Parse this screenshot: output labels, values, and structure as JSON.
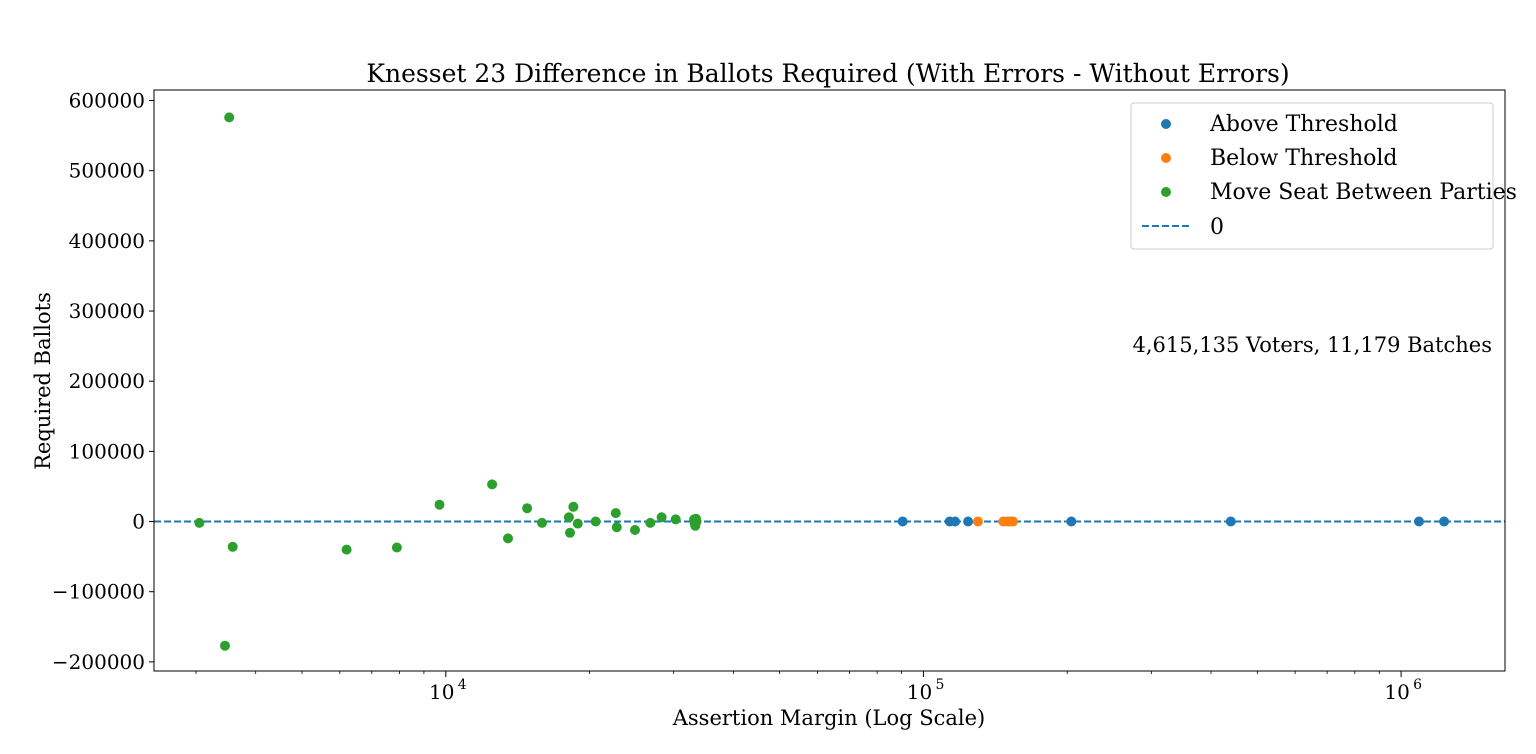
{
  "chart_data": {
    "type": "scatter",
    "title": "Knesset 23 Difference in Ballots Required (With Errors - Without Errors)",
    "xlabel": "Assertion Margin (Log Scale)",
    "ylabel": "Required Ballots",
    "x_scale": "log",
    "xlim": [
      2450,
      1650000
    ],
    "ylim": [
      -213000,
      615000
    ],
    "x_ticks": [
      {
        "value": 10000,
        "base": "10",
        "exp": "4"
      },
      {
        "value": 100000,
        "base": "10",
        "exp": "5"
      },
      {
        "value": 1000000,
        "base": "10",
        "exp": "6"
      }
    ],
    "y_ticks": [
      {
        "value": -200000,
        "label": "−200000"
      },
      {
        "value": -100000,
        "label": "−100000"
      },
      {
        "value": 0,
        "label": "0"
      },
      {
        "value": 100000,
        "label": "100000"
      },
      {
        "value": 200000,
        "label": "200000"
      },
      {
        "value": 300000,
        "label": "300000"
      },
      {
        "value": 400000,
        "label": "400000"
      },
      {
        "value": 500000,
        "label": "500000"
      },
      {
        "value": 600000,
        "label": "600000"
      }
    ],
    "grid": false,
    "legend_position": "top-right",
    "annotation": "4,615,135 Voters, 11,179 Batches",
    "reference_line": {
      "name": "0",
      "y": 0,
      "color": "#1f77b4",
      "style": "dashed"
    },
    "series": [
      {
        "name": "Above Threshold",
        "color": "#1f77b4",
        "points": [
          [
            90500,
            0
          ],
          [
            113500,
            0
          ],
          [
            116500,
            0
          ],
          [
            124000,
            0
          ],
          [
            204000,
            0
          ],
          [
            440000,
            0
          ],
          [
            1090000,
            0
          ],
          [
            1230000,
            0
          ]
        ]
      },
      {
        "name": "Below Threshold",
        "color": "#ff7f0e",
        "points": [
          [
            130000,
            0
          ],
          [
            147000,
            0
          ],
          [
            150000,
            0
          ],
          [
            152000,
            0
          ],
          [
            154000,
            0
          ]
        ]
      },
      {
        "name": "Move Seat Between Parties",
        "color": "#2ca02c",
        "points": [
          [
            3050,
            -2000
          ],
          [
            3450,
            -177000
          ],
          [
            3520,
            576000
          ],
          [
            3580,
            -36000
          ],
          [
            6200,
            -40000
          ],
          [
            7900,
            -37000
          ],
          [
            9700,
            24000
          ],
          [
            12500,
            53000
          ],
          [
            13500,
            -24000
          ],
          [
            14800,
            19000
          ],
          [
            15900,
            -2000
          ],
          [
            18100,
            6000
          ],
          [
            18200,
            -16000
          ],
          [
            18500,
            21000
          ],
          [
            18900,
            -3000
          ],
          [
            20600,
            0
          ],
          [
            22700,
            12000
          ],
          [
            22800,
            -8000
          ],
          [
            24900,
            -12000
          ],
          [
            26800,
            -2000
          ],
          [
            28300,
            6000
          ],
          [
            30300,
            3000
          ],
          [
            33100,
            3000
          ],
          [
            33200,
            -3000
          ],
          [
            33300,
            -6000
          ],
          [
            33400,
            4000
          ],
          [
            33500,
            0
          ]
        ]
      }
    ]
  }
}
